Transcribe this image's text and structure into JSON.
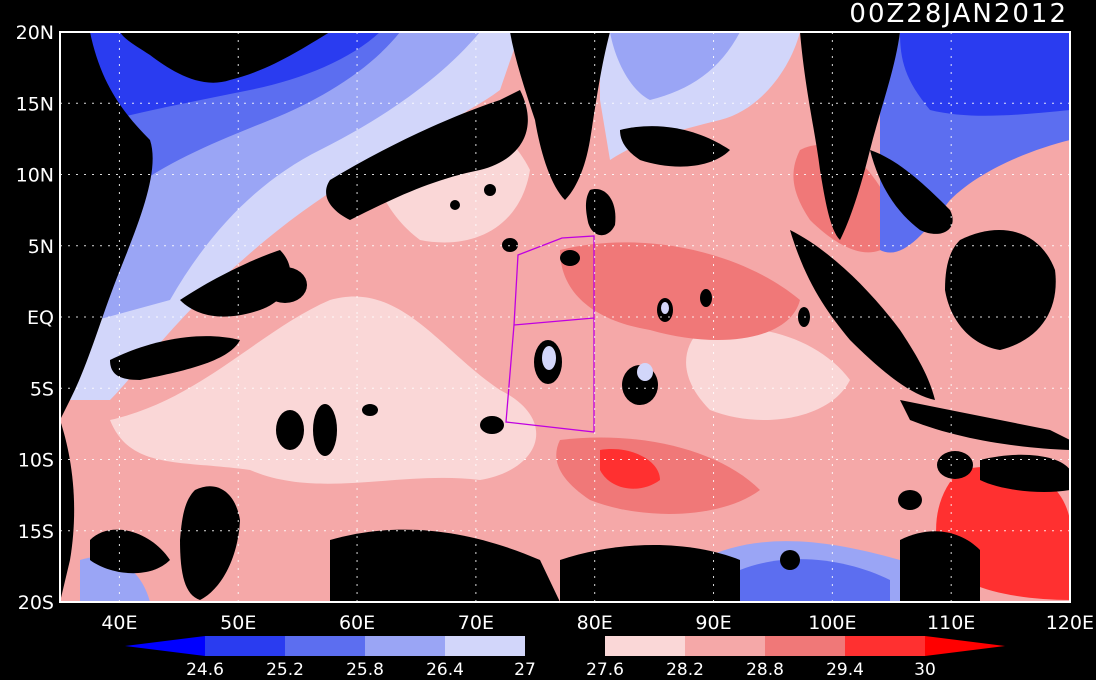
{
  "title": "00Z28JAN2012",
  "map": {
    "lat_ticks": [
      "20N",
      "15N",
      "10N",
      "5N",
      "EQ",
      "5S",
      "10S",
      "15S",
      "20S"
    ],
    "lon_ticks": [
      "40E",
      "50E",
      "60E",
      "70E",
      "80E",
      "90E",
      "100E",
      "110E",
      "120E"
    ],
    "grid": "dotted",
    "domain": {
      "lon": [
        35,
        120
      ],
      "lat": [
        -20,
        20
      ]
    }
  },
  "colorbar": {
    "levels": [
      "24.6",
      "25.2",
      "25.8",
      "26.4",
      "27",
      "27.6",
      "28.2",
      "28.8",
      "29.4",
      "30"
    ],
    "colors": [
      "#0000ff",
      "#2a3cf0",
      "#5c6ef0",
      "#9aa5f5",
      "#d2d6fa",
      "#000000",
      "#fad7d7",
      "#f5a8a8",
      "#f07878",
      "#ff3030",
      "#ff0000"
    ]
  },
  "colors": {
    "land": "#000000",
    "warm_region": "#f5a8a8",
    "cool_region": "#5c6ef0",
    "box_outline": "#c000e0"
  }
}
